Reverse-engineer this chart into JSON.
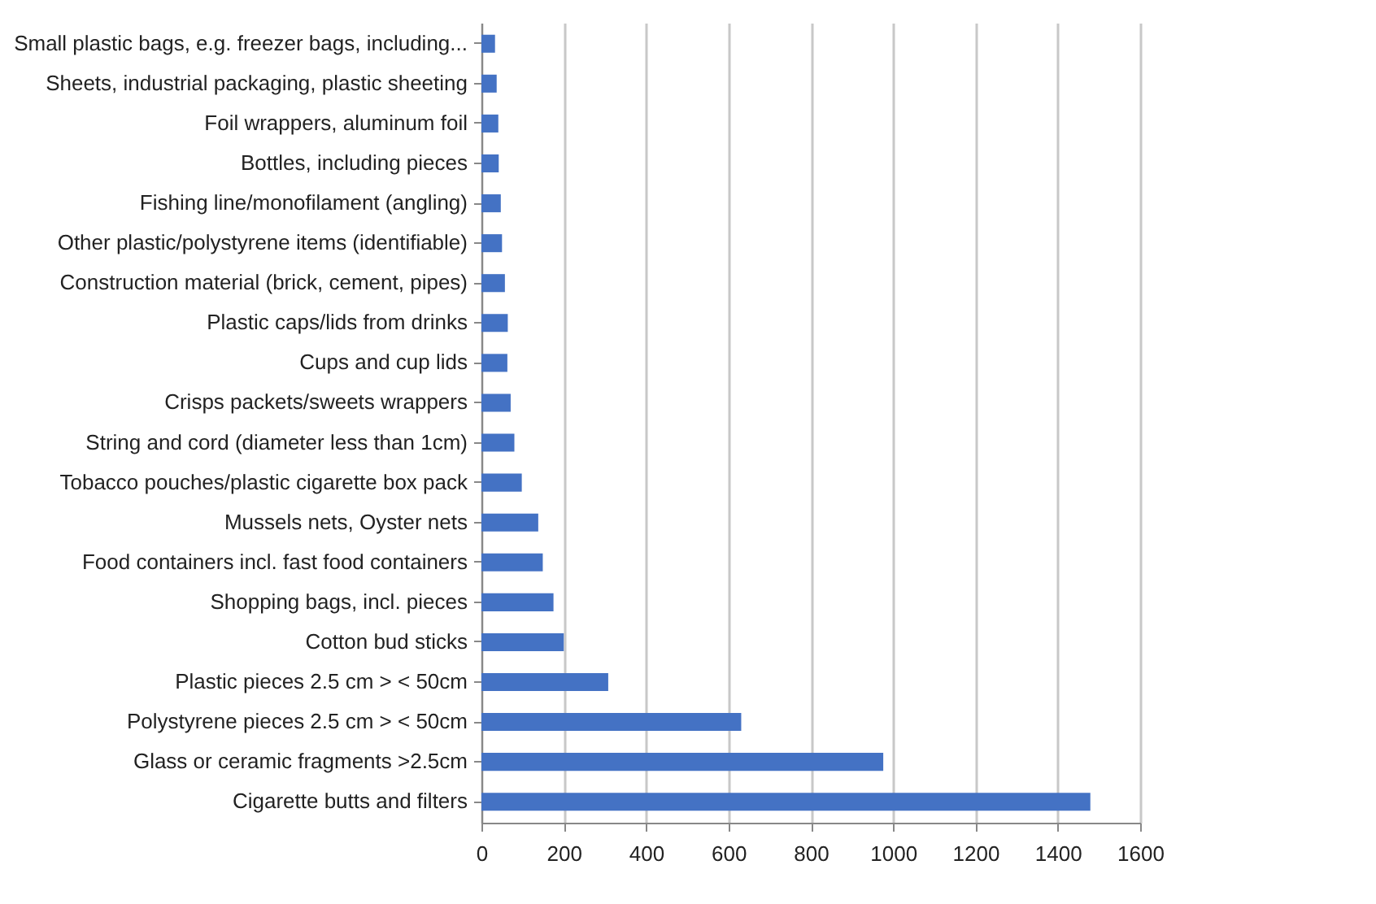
{
  "chart_data": {
    "type": "bar",
    "orientation": "horizontal",
    "categories": [
      "Small plastic bags, e.g. freezer bags, including...",
      "Sheets, industrial packaging, plastic sheeting",
      "Foil wrappers, aluminum foil",
      "Bottles, including pieces",
      "Fishing line/monofilament (angling)",
      "Other plastic/polystyrene items (identifiable)",
      "Construction material (brick, cement, pipes)",
      "Plastic caps/lids from drinks",
      "Cups and cup lids",
      "Crisps packets/sweets wrappers",
      "String and cord (diameter less than 1cm)",
      "Tobacco pouches/plastic cigarette box pack",
      "Mussels nets, Oyster nets",
      "Food containers incl. fast food containers",
      "Shopping bags, incl. pieces",
      "Cotton bud sticks",
      "Plastic pieces 2.5 cm > < 50cm",
      "Polystyrene pieces 2.5 cm > < 50cm",
      "Glass or ceramic fragments >2.5cm",
      "Cigarette butts and filters"
    ],
    "values": [
      33,
      37,
      41,
      42,
      47,
      50,
      57,
      64,
      63,
      71,
      80,
      98,
      138,
      149,
      175,
      200,
      308,
      631,
      976,
      1479
    ],
    "color": "#4472c4",
    "xlim": [
      0,
      1600
    ],
    "xticks": [
      0,
      200,
      400,
      600,
      800,
      1000,
      1200,
      1400,
      1600
    ],
    "grid": "x"
  }
}
